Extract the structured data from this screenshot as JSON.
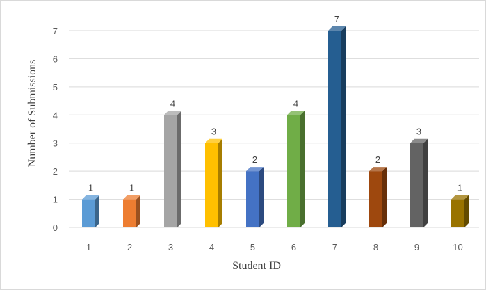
{
  "chart_data": {
    "type": "bar",
    "title": "",
    "xlabel": "Student ID",
    "ylabel": "Number of Submissions",
    "categories": [
      "1",
      "2",
      "3",
      "4",
      "5",
      "6",
      "7",
      "8",
      "9",
      "10"
    ],
    "values": [
      1,
      1,
      4,
      3,
      2,
      4,
      7,
      2,
      3,
      1
    ],
    "ylim": [
      0,
      7
    ],
    "yticks": [
      "0",
      "1",
      "2",
      "3",
      "4",
      "5",
      "6",
      "7"
    ],
    "grid": true,
    "legend": "none",
    "data_labels": true,
    "style": "3d-column",
    "colors": [
      "#5b9bd5",
      "#ed7d31",
      "#a5a5a5",
      "#ffc000",
      "#4472c4",
      "#70ad47",
      "#255e91",
      "#9e480e",
      "#636363",
      "#997300"
    ]
  }
}
